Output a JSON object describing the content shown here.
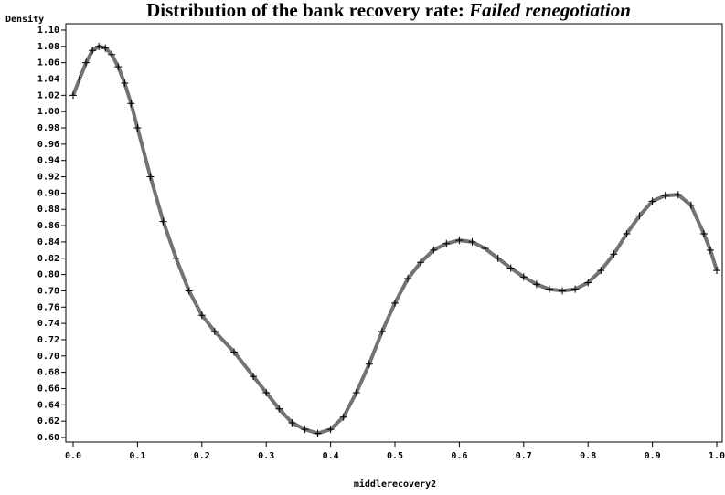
{
  "chart_data": {
    "type": "line",
    "title": "Distribution of the bank recovery rate:",
    "title_emphasis": "Failed renegotiation",
    "y_label": "Density",
    "x_label": "middlerecovery2",
    "color": "#000000",
    "marker": "plus",
    "x": [
      0.0,
      0.01,
      0.02,
      0.03,
      0.04,
      0.05,
      0.06,
      0.07,
      0.08,
      0.09,
      0.1,
      0.12,
      0.14,
      0.16,
      0.18,
      0.2,
      0.22,
      0.25,
      0.28,
      0.3,
      0.32,
      0.34,
      0.36,
      0.38,
      0.4,
      0.42,
      0.44,
      0.46,
      0.48,
      0.5,
      0.52,
      0.54,
      0.56,
      0.58,
      0.6,
      0.62,
      0.64,
      0.66,
      0.68,
      0.7,
      0.72,
      0.74,
      0.76,
      0.78,
      0.8,
      0.82,
      0.84,
      0.86,
      0.88,
      0.9,
      0.92,
      0.94,
      0.96,
      0.98,
      0.99,
      1.0
    ],
    "series": [
      {
        "name": "Density",
        "color": "#000000",
        "values": [
          1.02,
          1.04,
          1.06,
          1.075,
          1.08,
          1.078,
          1.07,
          1.055,
          1.035,
          1.01,
          0.98,
          0.92,
          0.865,
          0.82,
          0.78,
          0.75,
          0.73,
          0.705,
          0.675,
          0.655,
          0.635,
          0.618,
          0.61,
          0.605,
          0.61,
          0.625,
          0.655,
          0.69,
          0.73,
          0.765,
          0.795,
          0.815,
          0.83,
          0.838,
          0.842,
          0.84,
          0.832,
          0.82,
          0.808,
          0.797,
          0.788,
          0.782,
          0.78,
          0.782,
          0.79,
          0.805,
          0.825,
          0.85,
          0.872,
          0.89,
          0.897,
          0.898,
          0.885,
          0.85,
          0.83,
          0.805
        ]
      }
    ],
    "xlim": [
      0.0,
      1.0
    ],
    "xticks": [
      {
        "value": 0.0,
        "label": "0.0"
      },
      0.1,
      0.2,
      0.3,
      0.4,
      0.5,
      0.6,
      0.7,
      0.8,
      0.9,
      {
        "value": 1.0,
        "label": "1.0"
      }
    ],
    "ylim": [
      0.6,
      1.1
    ],
    "yticks": [
      {
        "value": 0.6,
        "label": "0.60"
      },
      0.62,
      0.64,
      0.66,
      0.68,
      {
        "value": 0.7,
        "label": "0.70"
      },
      0.72,
      0.74,
      0.76,
      0.78,
      {
        "value": 0.8,
        "label": "0.80"
      },
      0.82,
      0.84,
      0.86,
      0.88,
      {
        "value": 0.9,
        "label": "0.90"
      },
      0.92,
      0.94,
      0.96,
      0.98,
      {
        "value": 1.0,
        "label": "1.00"
      },
      1.02,
      1.04,
      1.06,
      1.08,
      {
        "value": 1.1,
        "label": "1.10"
      }
    ],
    "grid": false
  }
}
